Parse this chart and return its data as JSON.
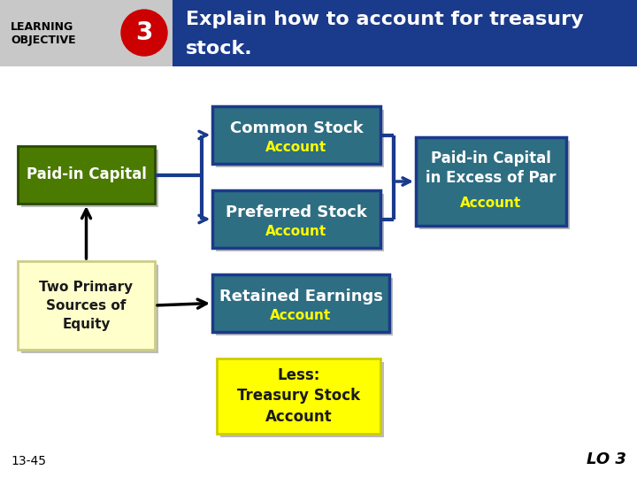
{
  "bg_color": "#ffffff",
  "header_bg": "#1a3a8c",
  "header_gray_bg": "#c8c8c8",
  "header_title_line1": "Explain how to account for treasury",
  "header_title_line2": "stock.",
  "header_lo_text": "LEARNING\nOBJECTIVE",
  "header_circle_color": "#cc0000",
  "header_circle_text": "3",
  "teal_bg": "#2e6e82",
  "teal_border": "#1a3a8c",
  "green_bg": "#4a7a00",
  "green_border": "#2a4a00",
  "yellow_light_bg": "#ffffcc",
  "yellow_light_border": "#cccc88",
  "yellow_bg": "#ffff00",
  "yellow_border": "#cccc00",
  "white_text": "#ffffff",
  "yellow_text": "#ffff00",
  "black_text": "#000000",
  "dark_text": "#1a1a1a",
  "footer_left": "13-45",
  "footer_right": "LO 3"
}
